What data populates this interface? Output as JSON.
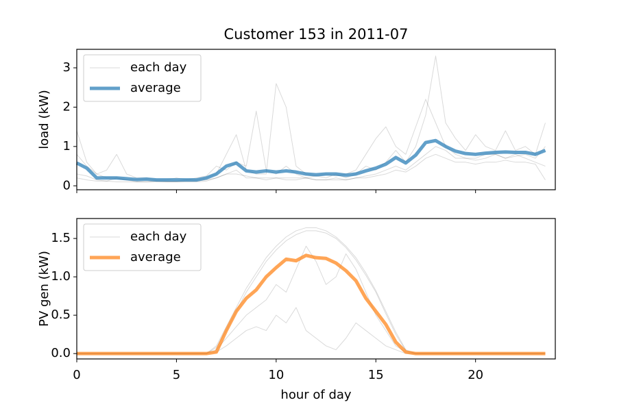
{
  "chart_data": [
    {
      "type": "line",
      "title": "Customer 153 in 2011-07",
      "ylabel": "load (kW)",
      "x": [
        0,
        0.5,
        1,
        1.5,
        2,
        2.5,
        3,
        3.5,
        4,
        4.5,
        5,
        5.5,
        6,
        6.5,
        7,
        7.5,
        8,
        8.5,
        9,
        9.5,
        10,
        10.5,
        11,
        11.5,
        12,
        12.5,
        13,
        13.5,
        14,
        14.5,
        15,
        15.5,
        16,
        16.5,
        17,
        17.5,
        18,
        18.5,
        19,
        19.5,
        20,
        20.5,
        21,
        21.5,
        22,
        22.5,
        23,
        23.5
      ],
      "xlim": [
        0,
        24
      ],
      "ylim": [
        -0.1,
        3.47
      ],
      "yticks": [
        0,
        1,
        2,
        3
      ],
      "legend": "upper left",
      "series": [
        {
          "name": "each day",
          "color": "#000000",
          "opacity": 0.15,
          "lines": [
            [
              1.4,
              0.6,
              0.3,
              0.2,
              0.2,
              0.15,
              0.15,
              0.15,
              0.12,
              0.12,
              0.12,
              0.15,
              0.15,
              0.2,
              0.3,
              0.8,
              1.3,
              0.4,
              0.3,
              0.3,
              2.6,
              2.0,
              0.5,
              0.3,
              0.25,
              0.3,
              0.25,
              0.3,
              0.4,
              0.8,
              1.2,
              1.5,
              1.0,
              0.8,
              1.5,
              2.2,
              1.6,
              1.0,
              0.8,
              0.7,
              0.7,
              0.8,
              0.8,
              0.7,
              0.8,
              0.7,
              0.6,
              0.5
            ],
            [
              0.3,
              0.25,
              0.15,
              0.12,
              0.2,
              0.15,
              0.1,
              0.1,
              0.12,
              0.1,
              0.1,
              0.12,
              0.12,
              0.15,
              0.2,
              0.3,
              0.4,
              0.2,
              0.2,
              0.15,
              0.2,
              0.15,
              0.15,
              0.2,
              0.15,
              0.15,
              0.2,
              0.15,
              0.2,
              0.25,
              0.3,
              0.4,
              0.5,
              0.4,
              0.6,
              0.8,
              1.0,
              0.9,
              0.7,
              0.7,
              0.65,
              0.7,
              0.8,
              0.7,
              0.75,
              0.8,
              0.7,
              1.0
            ],
            [
              0.8,
              0.5,
              0.3,
              0.4,
              0.8,
              0.3,
              0.2,
              0.2,
              0.15,
              0.15,
              0.2,
              0.15,
              0.2,
              0.25,
              0.5,
              0.4,
              0.6,
              0.5,
              1.9,
              0.4,
              0.3,
              0.5,
              0.3,
              0.2,
              0.25,
              0.2,
              0.3,
              0.2,
              0.3,
              0.5,
              0.4,
              0.6,
              0.9,
              0.6,
              1.0,
              1.8,
              3.3,
              1.6,
              1.2,
              0.9,
              1.3,
              1.0,
              0.9,
              1.4,
              0.9,
              1.0,
              0.8,
              1.6
            ],
            [
              0.2,
              0.15,
              0.12,
              0.12,
              0.1,
              0.1,
              0.1,
              0.1,
              0.1,
              0.1,
              0.1,
              0.1,
              0.1,
              0.12,
              0.2,
              0.3,
              0.3,
              0.25,
              0.2,
              0.2,
              0.2,
              0.2,
              0.2,
              0.2,
              0.15,
              0.15,
              0.15,
              0.15,
              0.2,
              0.2,
              0.25,
              0.3,
              0.4,
              0.35,
              0.5,
              0.7,
              0.8,
              0.7,
              0.6,
              0.6,
              0.55,
              0.6,
              0.6,
              0.65,
              0.6,
              0.6,
              0.55,
              0.15
            ]
          ]
        },
        {
          "name": "average",
          "color": "#1f77b4",
          "opacity": 0.7,
          "values": [
            0.58,
            0.45,
            0.2,
            0.2,
            0.2,
            0.18,
            0.16,
            0.17,
            0.15,
            0.15,
            0.15,
            0.15,
            0.15,
            0.2,
            0.3,
            0.5,
            0.58,
            0.38,
            0.35,
            0.38,
            0.35,
            0.38,
            0.35,
            0.3,
            0.28,
            0.3,
            0.3,
            0.27,
            0.3,
            0.38,
            0.45,
            0.55,
            0.72,
            0.58,
            0.78,
            1.1,
            1.15,
            1.0,
            0.88,
            0.82,
            0.8,
            0.83,
            0.85,
            0.86,
            0.85,
            0.85,
            0.8,
            0.9
          ]
        }
      ]
    },
    {
      "type": "line",
      "ylabel": "PV gen (kW)",
      "xlabel": "hour of day",
      "x": [
        0,
        0.5,
        1,
        1.5,
        2,
        2.5,
        3,
        3.5,
        4,
        4.5,
        5,
        5.5,
        6,
        6.5,
        7,
        7.5,
        8,
        8.5,
        9,
        9.5,
        10,
        10.5,
        11,
        11.5,
        12,
        12.5,
        13,
        13.5,
        14,
        14.5,
        15,
        15.5,
        16,
        16.5,
        17,
        17.5,
        18,
        18.5,
        19,
        19.5,
        20,
        20.5,
        21,
        21.5,
        22,
        22.5,
        23,
        23.5
      ],
      "xlim": [
        0,
        24
      ],
      "xticks": [
        0,
        5,
        10,
        15,
        20
      ],
      "ylim": [
        -0.07,
        1.76
      ],
      "yticks": [
        {
          "value": 0.0,
          "label": "0.0"
        },
        0.5,
        {
          "value": 1.0,
          "label": "1.0"
        },
        1.5
      ],
      "legend": "upper left",
      "series": [
        {
          "name": "each day",
          "color": "#000000",
          "opacity": 0.15,
          "lines": [
            [
              0,
              0,
              0,
              0,
              0,
              0,
              0,
              0,
              0,
              0,
              0,
              0,
              0,
              0,
              0.1,
              0.35,
              0.6,
              0.85,
              1.05,
              1.25,
              1.4,
              1.52,
              1.6,
              1.64,
              1.64,
              1.6,
              1.52,
              1.4,
              1.25,
              1.05,
              0.82,
              0.55,
              0.28,
              0.05,
              0,
              0,
              0,
              0,
              0,
              0,
              0,
              0,
              0,
              0,
              0,
              0,
              0,
              0
            ],
            [
              0,
              0,
              0,
              0,
              0,
              0,
              0,
              0,
              0,
              0,
              0,
              0,
              0,
              0,
              0.05,
              0.2,
              0.35,
              0.5,
              0.6,
              0.7,
              0.9,
              0.8,
              1.1,
              1.4,
              1.2,
              0.9,
              1.0,
              1.3,
              1.1,
              0.8,
              0.5,
              0.3,
              0.1,
              0.02,
              0,
              0,
              0,
              0,
              0,
              0,
              0,
              0,
              0,
              0,
              0,
              0,
              0,
              0
            ],
            [
              0,
              0,
              0,
              0,
              0,
              0,
              0,
              0,
              0,
              0,
              0,
              0,
              0,
              0,
              0.02,
              0.1,
              0.2,
              0.3,
              0.35,
              0.3,
              0.5,
              0.4,
              0.6,
              0.3,
              0.2,
              0.1,
              0.05,
              0.2,
              0.4,
              0.3,
              0.2,
              0.1,
              0.05,
              0,
              0,
              0,
              0,
              0,
              0,
              0,
              0,
              0,
              0,
              0,
              0,
              0,
              0,
              0
            ],
            [
              0,
              0,
              0,
              0,
              0,
              0,
              0,
              0,
              0,
              0,
              0,
              0,
              0,
              0,
              0.08,
              0.3,
              0.55,
              0.8,
              1.0,
              1.2,
              1.35,
              1.47,
              1.55,
              1.6,
              1.6,
              1.57,
              1.5,
              1.38,
              1.22,
              1.02,
              0.8,
              0.52,
              0.25,
              0.04,
              0,
              0,
              0,
              0,
              0,
              0,
              0,
              0,
              0,
              0,
              0,
              0,
              0,
              0
            ]
          ]
        },
        {
          "name": "average",
          "color": "#ff7f0e",
          "opacity": 0.7,
          "values": [
            0,
            0,
            0,
            0,
            0,
            0,
            0,
            0,
            0,
            0,
            0,
            0,
            0,
            0,
            0.02,
            0.3,
            0.55,
            0.72,
            0.83,
            1.0,
            1.12,
            1.23,
            1.21,
            1.28,
            1.25,
            1.24,
            1.18,
            1.08,
            0.95,
            0.72,
            0.55,
            0.38,
            0.15,
            0.02,
            0,
            0,
            0,
            0,
            0,
            0,
            0,
            0,
            0,
            0,
            0,
            0,
            0,
            0
          ]
        }
      ]
    }
  ]
}
